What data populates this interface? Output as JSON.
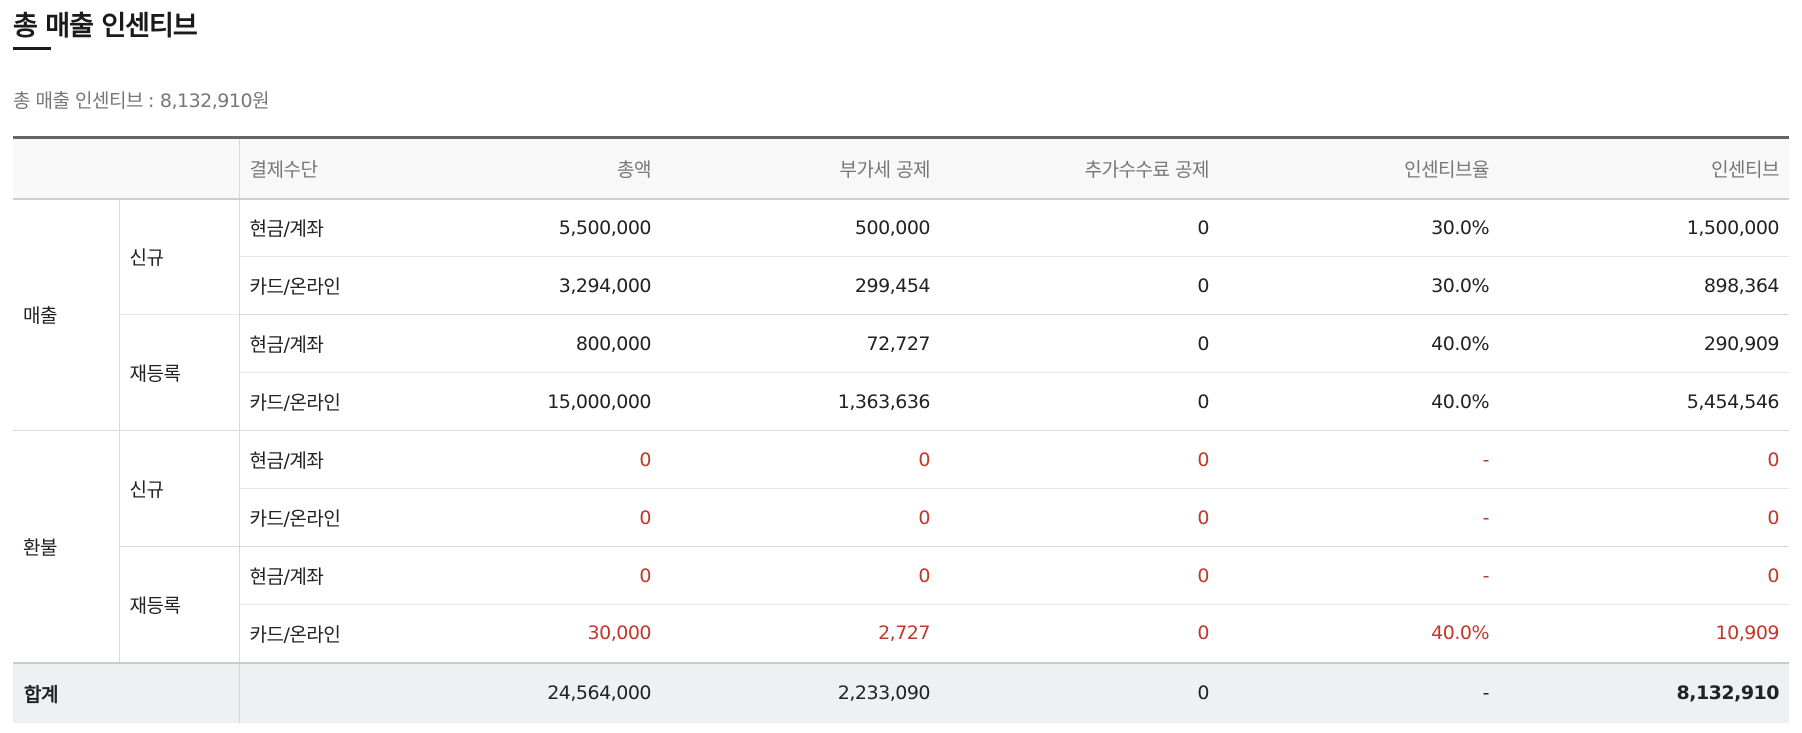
{
  "page": {
    "title": "총 매출 인센티브",
    "summary_label": "총 매출 인센티브",
    "summary_separator": ":",
    "summary_value": "8,132,910원"
  },
  "table": {
    "headers": [
      "결제수단",
      "총액",
      "부가세 공제",
      "추가수수료 공제",
      "인센티브율",
      "인센티브"
    ],
    "sections": [
      {
        "label": "매출",
        "subgroups": [
          {
            "label": "신규",
            "rows": [
              {
                "method": "현금/계좌",
                "total": "5,500,000",
                "vat": "500,000",
                "fee": "0",
                "rate": "30.0%",
                "incentive": "1,500,000"
              },
              {
                "method": "카드/온라인",
                "total": "3,294,000",
                "vat": "299,454",
                "fee": "0",
                "rate": "30.0%",
                "incentive": "898,364"
              }
            ]
          },
          {
            "label": "재등록",
            "rows": [
              {
                "method": "현금/계좌",
                "total": "800,000",
                "vat": "72,727",
                "fee": "0",
                "rate": "40.0%",
                "incentive": "290,909"
              },
              {
                "method": "카드/온라인",
                "total": "15,000,000",
                "vat": "1,363,636",
                "fee": "0",
                "rate": "40.0%",
                "incentive": "5,454,546"
              }
            ]
          }
        ]
      },
      {
        "label": "환불",
        "subgroups": [
          {
            "label": "신규",
            "rows": [
              {
                "method": "현금/계좌",
                "total": "0",
                "vat": "0",
                "fee": "0",
                "rate": "-",
                "incentive": "0"
              },
              {
                "method": "카드/온라인",
                "total": "0",
                "vat": "0",
                "fee": "0",
                "rate": "-",
                "incentive": "0"
              }
            ]
          },
          {
            "label": "재등록",
            "rows": [
              {
                "method": "현금/계좌",
                "total": "0",
                "vat": "0",
                "fee": "0",
                "rate": "-",
                "incentive": "0"
              },
              {
                "method": "카드/온라인",
                "total": "30,000",
                "vat": "2,727",
                "fee": "0",
                "rate": "40.0%",
                "incentive": "10,909"
              }
            ]
          }
        ]
      }
    ],
    "total": {
      "label": "합계",
      "method": "",
      "total": "24,564,000",
      "vat": "2,233,090",
      "fee": "0",
      "rate": "-",
      "incentive": "8,132,910"
    }
  },
  "colors": {
    "refund_text": "#c0392b",
    "header_bg": "#f8f8f8",
    "total_bg": "#eef1f2"
  }
}
